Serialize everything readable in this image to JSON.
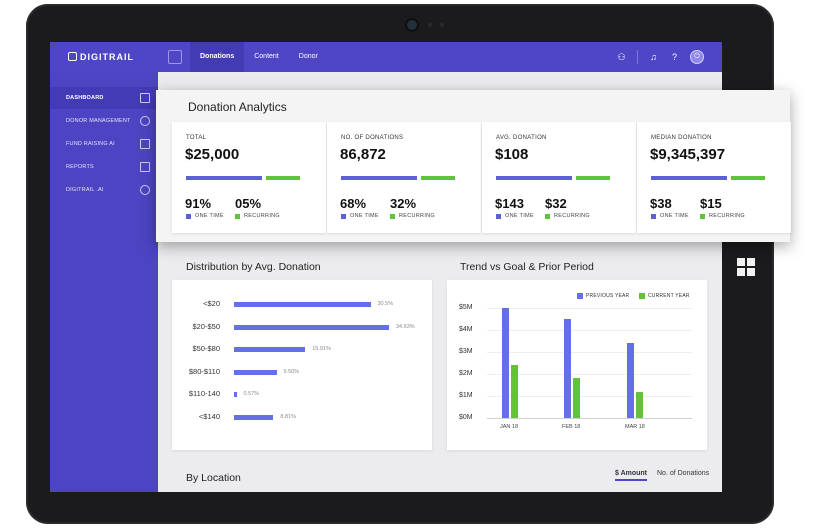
{
  "app": {
    "logo": "DIGITRAIL"
  },
  "topnav": {
    "tabs": [
      {
        "label": "Donations",
        "active": true
      },
      {
        "label": "Content"
      },
      {
        "label": "Donor"
      }
    ]
  },
  "sidebar": {
    "items": [
      {
        "label": "DASHBOARD",
        "active": true,
        "icon": "grid-icon"
      },
      {
        "label": "DONOR MANAGEMENT",
        "icon": "user-icon"
      },
      {
        "label": "FUND RAISING AI",
        "icon": "money-icon"
      },
      {
        "label": "REPORTS",
        "icon": "document-icon"
      },
      {
        "label": "DIGITRAIL .AI",
        "icon": "brain-icon"
      }
    ]
  },
  "analytics": {
    "title": "Donation Analytics",
    "cards": [
      {
        "label": "TOTAL",
        "value": "$25,000",
        "p1": "91%",
        "p2": "05%",
        "l1": "ONE TIME",
        "l2": "RECURRING"
      },
      {
        "label": "NO. OF DONATIONS",
        "value": "86,872",
        "p1": "68%",
        "p2": "32%",
        "l1": "ONE TIME",
        "l2": "RECURRING"
      },
      {
        "label": "AVG. DONATION",
        "value": "$108",
        "p1": "$143",
        "p2": "$32",
        "l1": "ONE TIME",
        "l2": "RECURRING"
      },
      {
        "label": "MEDIAN DONATION",
        "value": "$9,345,397",
        "p1": "$38",
        "p2": "$15",
        "l1": "ONE TIME",
        "l2": "RECURRING"
      }
    ]
  },
  "distribution": {
    "title": "Distribution by Avg. Donation"
  },
  "trend": {
    "title": "Trend vs Goal & Prior Period"
  },
  "location": {
    "title": "By Location",
    "tabs": [
      "$ Amount",
      "No. of Donations"
    ]
  },
  "colors": {
    "primary": "#4e46c4",
    "blue": "#6570e6",
    "green": "#63c23c"
  },
  "chart_data": [
    {
      "type": "bar",
      "orientation": "horizontal",
      "categories": [
        "<$20",
        "$20-$50",
        "$50-$80",
        "$80-$110",
        "$110-140",
        "<$140"
      ],
      "values": [
        30.5,
        34.63,
        15.91,
        9.5,
        0.57,
        8.81
      ],
      "value_labels": [
        "30.5%",
        "34.63%",
        "15.91%",
        "9.50%",
        "0.57%",
        "8.81%"
      ],
      "title": "Distribution by Avg. Donation"
    },
    {
      "type": "bar",
      "categories": [
        "JAN 18",
        "FEB 18",
        "MAR 18"
      ],
      "series": [
        {
          "name": "PREVIOUS YEAR",
          "color": "#6570e6",
          "values": [
            5.0,
            4.5,
            3.4
          ]
        },
        {
          "name": "CURRENT YEAR",
          "color": "#63c23c",
          "values": [
            2.4,
            1.8,
            1.2
          ]
        }
      ],
      "yticks": [
        "$5M",
        "$4M",
        "$3M",
        "$2M",
        "$1M",
        "$0M"
      ],
      "ylim": [
        0,
        5
      ],
      "title": "Trend vs Goal & Prior Period",
      "legend": "top-right"
    }
  ]
}
